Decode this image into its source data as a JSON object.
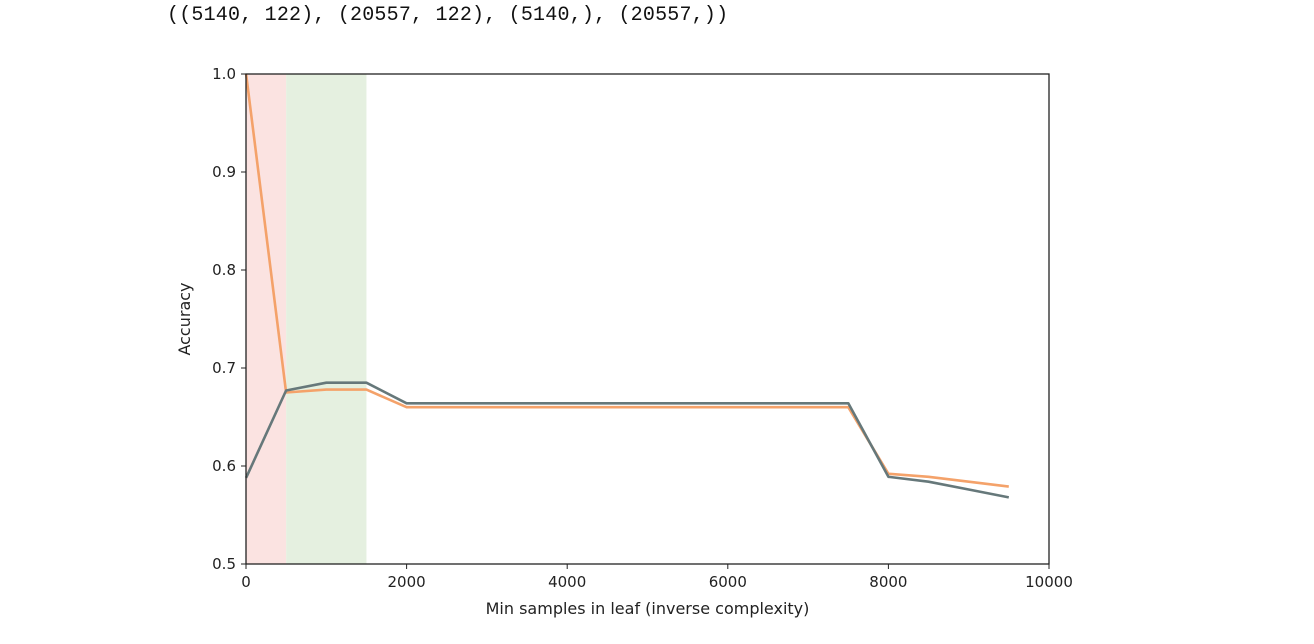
{
  "output": {
    "text": "((5140, 122), (20557, 122), (5140,), (20557,))"
  },
  "chart_data": {
    "type": "line",
    "title": "",
    "xlabel": "Min samples in leaf (inverse complexity)",
    "ylabel": "Accuracy",
    "xlim": [
      0,
      10000
    ],
    "ylim": [
      0.5,
      1.0
    ],
    "xticks": [
      0,
      2000,
      4000,
      6000,
      8000,
      10000
    ],
    "yticks": [
      0.5,
      0.6,
      0.7,
      0.8,
      0.9,
      1.0
    ],
    "grid": false,
    "legend": "none",
    "shaded_regions": [
      {
        "x": [
          0,
          500
        ],
        "color": "#fbe3e1"
      },
      {
        "x": [
          500,
          1500
        ],
        "color": "#e5f0e0"
      }
    ],
    "series": [
      {
        "color": "#f4a26a",
        "x": [
          1,
          500,
          1000,
          1500,
          2000,
          2500,
          3000,
          3500,
          4000,
          4500,
          5000,
          5500,
          6000,
          6500,
          7000,
          7500,
          8000,
          8500,
          9000,
          9500
        ],
        "y": [
          1.0,
          0.675,
          0.678,
          0.678,
          0.66,
          0.66,
          0.66,
          0.66,
          0.66,
          0.66,
          0.66,
          0.66,
          0.66,
          0.66,
          0.66,
          0.66,
          0.592,
          0.589,
          0.584,
          0.579
        ]
      },
      {
        "color": "#66787a",
        "x": [
          1,
          500,
          1000,
          1500,
          2000,
          2500,
          3000,
          3500,
          4000,
          4500,
          5000,
          5500,
          6000,
          6500,
          7000,
          7500,
          8000,
          8500,
          9000,
          9500
        ],
        "y": [
          0.588,
          0.677,
          0.685,
          0.685,
          0.664,
          0.664,
          0.664,
          0.664,
          0.664,
          0.664,
          0.664,
          0.664,
          0.664,
          0.664,
          0.664,
          0.664,
          0.589,
          0.584,
          0.576,
          0.568
        ]
      }
    ]
  }
}
